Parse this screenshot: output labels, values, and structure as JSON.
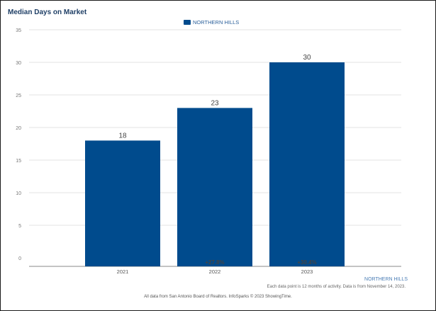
{
  "chart_data": {
    "type": "bar",
    "title": "Median Days on Market",
    "categories": [
      "2021",
      "2022",
      "2023"
    ],
    "series": [
      {
        "name": "NORTHERN HILLS",
        "values": [
          18,
          23,
          30
        ],
        "color": "#004b8d"
      }
    ],
    "data_labels": [
      "18",
      "23",
      "30"
    ],
    "change_labels": [
      "",
      "+27.8%",
      "+30.4%"
    ],
    "y_ticks": [
      0,
      5,
      10,
      15,
      20,
      25,
      30,
      35
    ],
    "ylim": [
      0,
      35
    ],
    "xlabel": "",
    "ylabel": "",
    "grid": true,
    "legend_position": "top-center"
  },
  "footer": {
    "series_label": "NORTHERN HILLS",
    "note": "Each data point is 12 months of activity. Data is from November 14, 2023.",
    "source": "All data from San Antonio Board of Realtors. InfoSparks © 2023 ShowingTime."
  },
  "colors": {
    "bar": "#004b8d",
    "grid": "#e3e3e3",
    "axis": "#888888"
  }
}
